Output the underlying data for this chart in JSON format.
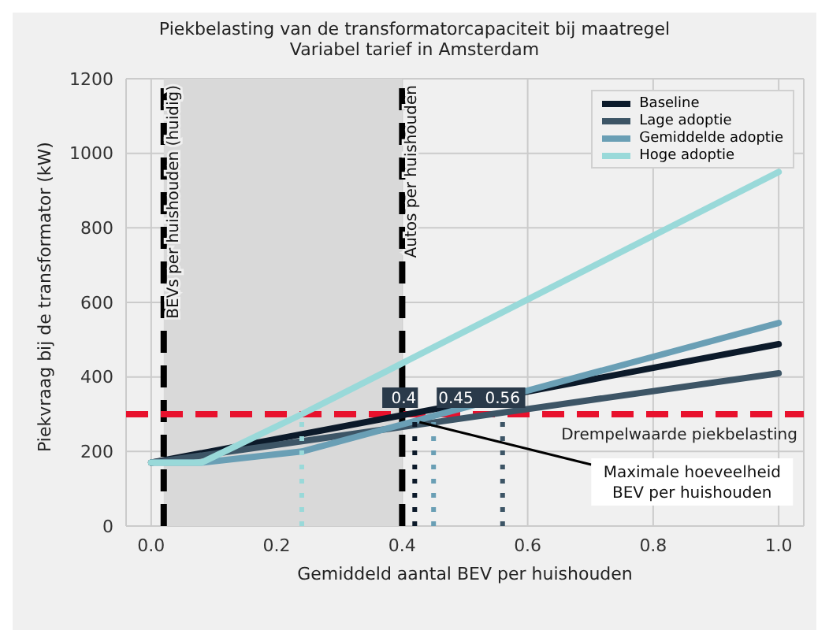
{
  "chart_data": {
    "type": "line",
    "title": "Piekbelasting van de transformatorcapaciteit bij maatregel\nVariabel tarief in Amsterdam",
    "xlabel": "Gemiddeld aantal BEV per huishouden",
    "ylabel": "Piekvraag bij de transformator (kW)",
    "series": [
      {
        "name": "Baseline",
        "color": "#0c1a2a",
        "x": [
          0,
          1
        ],
        "values": [
          170,
          488
        ]
      },
      {
        "name": "Lage adoptie",
        "color": "#3d5566",
        "x": [
          0,
          1
        ],
        "values": [
          170,
          410
        ]
      },
      {
        "name": "Gemiddelde adoptie",
        "color": "#6a9fb5",
        "x": [
          0,
          0.08,
          0.24,
          1
        ],
        "values": [
          170,
          170,
          200,
          545
        ]
      },
      {
        "name": "Hoge adoptie",
        "color": "#99d9d9",
        "x": [
          0,
          0.08,
          0.24,
          1
        ],
        "values": [
          170,
          170,
          300,
          950
        ]
      },
      {
        "color": "#99d9d9",
        "line_style": "dotted",
        "x": [
          0.24,
          0.24
        ],
        "values": [
          0,
          300
        ]
      },
      {
        "color": "#0c1a2a",
        "line_style": "dotted",
        "x": [
          0.42,
          0.42
        ],
        "values": [
          0,
          300
        ]
      },
      {
        "color": "#6a9fb5",
        "line_style": "dotted",
        "x": [
          0.45,
          0.45
        ],
        "values": [
          0,
          300
        ]
      },
      {
        "color": "#3d5566",
        "line_style": "dotted",
        "x": [
          0.56,
          0.56
        ],
        "values": [
          0,
          300
        ]
      }
    ],
    "ref_lines": [
      {
        "axis": "x",
        "value": 0.02,
        "label": "BEVs per huishouden (huidig)",
        "color": "#000000",
        "line_style": "dashed"
      },
      {
        "axis": "x",
        "value": 0.4,
        "label": "Autos per huishouden",
        "color": "#000000",
        "line_style": "dashed"
      },
      {
        "axis": "y",
        "value": 300,
        "label": "Drempelwaarde piekbelasting",
        "color": "#e8112d",
        "line_style": "dashed"
      }
    ],
    "bands": [
      {
        "axis": "x",
        "from": 0.02,
        "to": 0.4,
        "color": "#d9d9d9"
      }
    ],
    "annotations": [
      {
        "text": "Maximale hoeveelheid BEV per huishouden",
        "x": 0.42,
        "y": 300
      },
      {
        "text": "0.4",
        "x": 0.42,
        "y": 300
      },
      {
        "text": "0.45",
        "x": 0.45,
        "y": 300
      },
      {
        "text": "0.56",
        "x": 0.56,
        "y": 300
      }
    ],
    "xlim": [
      -0.04,
      1.04
    ],
    "xticks": [
      {
        "value": 0,
        "label": "0.0"
      },
      0.2,
      0.4,
      0.6,
      0.8,
      {
        "value": 1,
        "label": "1.0"
      }
    ],
    "ylim": [
      0,
      1200
    ],
    "yticks": [
      0,
      200,
      400,
      600,
      800,
      1000,
      1200
    ],
    "grid": true,
    "legend": "top right",
    "line_style": "solid"
  }
}
